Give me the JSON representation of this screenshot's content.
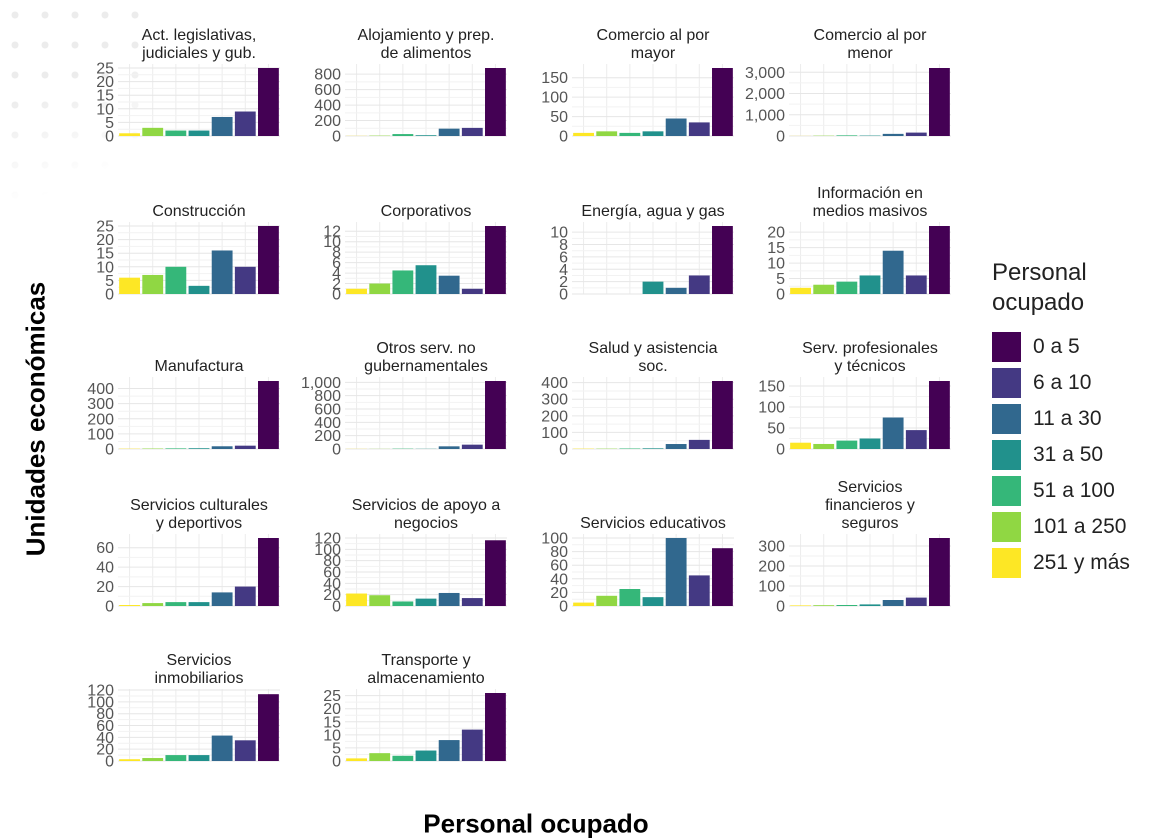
{
  "title": "",
  "ylabel": "Unidades económicas",
  "xlabel": "Personal ocupado",
  "legend": {
    "title": "Personal ocupado",
    "placement": "right",
    "items": [
      {
        "label": "0 a 5",
        "color": "#440154"
      },
      {
        "label": "6 a 10",
        "color": "#443983"
      },
      {
        "label": "11 a 30",
        "color": "#31688e"
      },
      {
        "label": "31 a 50",
        "color": "#21918c"
      },
      {
        "label": "51 a 100",
        "color": "#35b779"
      },
      {
        "label": "101 a 250",
        "color": "#90d743"
      },
      {
        "label": "251 y más",
        "color": "#fde725"
      }
    ]
  },
  "chart_data": {
    "type": "bar",
    "categories": [
      "251 y más",
      "101 a 250",
      "51 a 100",
      "31 a 50",
      "11 a 30",
      "6 a 10",
      "0 a 5"
    ],
    "colors": [
      "#fde725",
      "#90d743",
      "#35b779",
      "#21918c",
      "#31688e",
      "#443983",
      "#440154"
    ],
    "grid": true,
    "x_tick_labels": false,
    "facets": [
      {
        "title": [
          "Act. legislativas,",
          "judiciales y gub."
        ],
        "values": [
          1,
          3,
          2,
          2,
          7,
          9,
          25
        ],
        "ylim": [
          0,
          25
        ],
        "ticks": [
          0,
          5,
          10,
          15,
          20,
          25
        ],
        "tick_labels": [
          "0",
          "5",
          "10",
          "15",
          "20",
          "25"
        ]
      },
      {
        "title": [
          "Alojamiento y prep.",
          "de alimentos"
        ],
        "values": [
          2,
          5,
          25,
          10,
          95,
          105,
          880
        ],
        "ylim": [
          0,
          880
        ],
        "ticks": [
          0,
          200,
          400,
          600,
          800
        ],
        "tick_labels": [
          "0",
          "200",
          "400",
          "600",
          "800"
        ]
      },
      {
        "title": [
          "Comercio al por",
          "mayor"
        ],
        "values": [
          8,
          12,
          8,
          12,
          45,
          35,
          175
        ],
        "ylim": [
          0,
          175
        ],
        "ticks": [
          0,
          50,
          100,
          150
        ],
        "tick_labels": [
          "0",
          "50",
          "100",
          "150"
        ]
      },
      {
        "title": [
          "Comercio al por",
          "menor"
        ],
        "values": [
          5,
          15,
          30,
          20,
          100,
          160,
          3200
        ],
        "ylim": [
          0,
          3200
        ],
        "ticks": [
          0,
          1000,
          2000,
          3000
        ],
        "tick_labels": [
          "0",
          "1,000",
          "2,000",
          "3,000"
        ]
      },
      {
        "title": [
          "Construcción"
        ],
        "values": [
          6,
          7,
          10,
          3,
          16,
          10,
          25
        ],
        "ylim": [
          0,
          25
        ],
        "ticks": [
          0,
          5,
          10,
          15,
          20,
          25
        ],
        "tick_labels": [
          "0",
          "5",
          "10",
          "15",
          "20",
          "25"
        ]
      },
      {
        "title": [
          "Corporativos"
        ],
        "values": [
          1,
          2,
          4.5,
          5.5,
          3.5,
          1,
          13
        ],
        "ylim": [
          0,
          13
        ],
        "ticks": [
          0,
          2,
          4,
          6,
          8,
          10,
          12
        ],
        "tick_labels": [
          "0",
          "2",
          "4",
          "6",
          "8",
          "10",
          "12"
        ]
      },
      {
        "title": [
          "Energía, agua y gas"
        ],
        "values": [
          0,
          0,
          0,
          2,
          1,
          3,
          11
        ],
        "ylim": [
          0,
          11
        ],
        "ticks": [
          0,
          2,
          4,
          6,
          8,
          10
        ],
        "tick_labels": [
          "0",
          "2",
          "4",
          "6",
          "8",
          "10"
        ]
      },
      {
        "title": [
          "Información en",
          "medios masivos"
        ],
        "values": [
          2,
          3,
          4,
          6,
          14,
          6,
          22
        ],
        "ylim": [
          0,
          22
        ],
        "ticks": [
          0,
          5,
          10,
          15,
          20
        ],
        "tick_labels": [
          "0",
          "5",
          "10",
          "15",
          "20"
        ]
      },
      {
        "title": [
          "Manufactura"
        ],
        "values": [
          2,
          3,
          4,
          5,
          18,
          22,
          450
        ],
        "ylim": [
          0,
          450
        ],
        "ticks": [
          0,
          100,
          200,
          300,
          400
        ],
        "tick_labels": [
          "0",
          "100",
          "200",
          "300",
          "400"
        ]
      },
      {
        "title": [
          "Otros serv. no",
          "gubernamentales"
        ],
        "values": [
          2,
          2,
          5,
          3,
          40,
          65,
          1020
        ],
        "ylim": [
          0,
          1020
        ],
        "ticks": [
          0,
          200,
          400,
          600,
          800,
          1000
        ],
        "tick_labels": [
          "0",
          "200",
          "400",
          "600",
          "800",
          "1,000"
        ]
      },
      {
        "title": [
          "Salud y asistencia",
          "soc."
        ],
        "values": [
          2,
          2,
          3,
          4,
          30,
          55,
          410
        ],
        "ylim": [
          0,
          410
        ],
        "ticks": [
          0,
          100,
          200,
          300,
          400
        ],
        "tick_labels": [
          "0",
          "100",
          "200",
          "300",
          "400"
        ]
      },
      {
        "title": [
          "Serv. profesionales",
          "y técnicos"
        ],
        "values": [
          15,
          12,
          20,
          25,
          75,
          45,
          162
        ],
        "ylim": [
          0,
          162
        ],
        "ticks": [
          0,
          50,
          100,
          150
        ],
        "tick_labels": [
          "0",
          "50",
          "100",
          "150"
        ]
      },
      {
        "title": [
          "Servicios culturales",
          "y deportivos"
        ],
        "values": [
          1,
          3,
          4,
          4,
          14,
          20,
          70
        ],
        "ylim": [
          0,
          70
        ],
        "ticks": [
          0,
          20,
          40,
          60
        ],
        "tick_labels": [
          "0",
          "20",
          "40",
          "60"
        ]
      },
      {
        "title": [
          "Servicios de apoyo a",
          "negocios"
        ],
        "values": [
          22,
          19,
          8,
          13,
          23,
          14,
          116
        ],
        "ylim": [
          0,
          120
        ],
        "ticks": [
          0,
          20,
          40,
          60,
          80,
          100,
          120
        ],
        "tick_labels": [
          "0",
          "20",
          "40",
          "60",
          "80",
          "100",
          "120"
        ]
      },
      {
        "title": [
          "Servicios educativos"
        ],
        "values": [
          5,
          15,
          25,
          13,
          100,
          45,
          85
        ],
        "ylim": [
          0,
          100
        ],
        "ticks": [
          0,
          20,
          40,
          60,
          80,
          100
        ],
        "tick_labels": [
          "0",
          "20",
          "40",
          "60",
          "80",
          "100"
        ]
      },
      {
        "title": [
          "Servicios",
          "financieros y",
          "seguros"
        ],
        "values": [
          3,
          4,
          5,
          8,
          30,
          42,
          340
        ],
        "ylim": [
          0,
          340
        ],
        "ticks": [
          0,
          100,
          200,
          300
        ],
        "tick_labels": [
          "0",
          "100",
          "200",
          "300"
        ]
      },
      {
        "title": [
          "Servicios",
          "inmobiliarios"
        ],
        "values": [
          3,
          5,
          10,
          10,
          43,
          35,
          113
        ],
        "ylim": [
          0,
          115
        ],
        "ticks": [
          0,
          20,
          40,
          60,
          80,
          100,
          120
        ],
        "tick_labels": [
          "0",
          "20",
          "40",
          "60",
          "80",
          "100",
          "120"
        ]
      },
      {
        "title": [
          "Transporte y",
          "almacenamiento"
        ],
        "values": [
          1,
          3,
          2,
          4,
          8,
          12,
          26
        ],
        "ylim": [
          0,
          26
        ],
        "ticks": [
          0,
          5,
          10,
          15,
          20,
          25
        ],
        "tick_labels": [
          "0",
          "5",
          "10",
          "15",
          "20",
          "25"
        ]
      }
    ]
  }
}
